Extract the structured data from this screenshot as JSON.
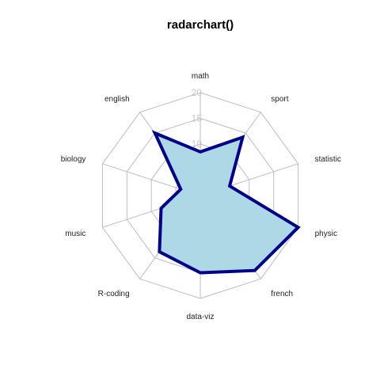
{
  "chart_data": {
    "type": "radar",
    "title": "radarchart()",
    "axes": [
      "math",
      "sport",
      "statistic",
      "physic",
      "french",
      "data-viz",
      "R-coding",
      "music",
      "biology",
      "english"
    ],
    "scale": {
      "min": 0,
      "max": 20
    },
    "ticks": [
      "10",
      "15",
      "20"
    ],
    "grid_levels": 4,
    "series": [
      {
        "values": [
          8.5,
          14,
          6,
          20,
          18,
          15,
          13.5,
          8,
          4,
          15
        ]
      }
    ],
    "colors": {
      "line": "#00008B",
      "fill": "#ADD8E6",
      "grid": "#BEBEBE"
    }
  }
}
